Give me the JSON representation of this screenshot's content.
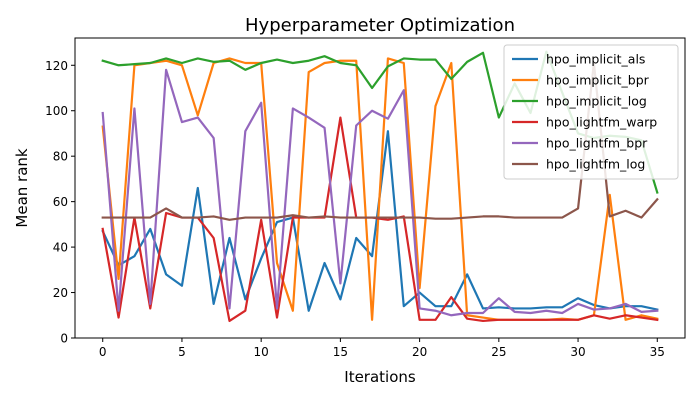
{
  "chart_data": {
    "type": "line",
    "title": "Hyperparameter Optimization",
    "xlabel": "Iterations",
    "ylabel": "Mean rank",
    "xlim": [
      -1.75,
      36.75
    ],
    "ylim": [
      0,
      132
    ],
    "xticks": [
      0,
      5,
      10,
      15,
      20,
      25,
      30,
      35
    ],
    "yticks": [
      0,
      20,
      40,
      60,
      80,
      100,
      120
    ],
    "grid": false,
    "legend_position": "top-right",
    "x": [
      0,
      1,
      2,
      3,
      4,
      5,
      6,
      7,
      8,
      9,
      10,
      11,
      12,
      13,
      14,
      15,
      16,
      17,
      18,
      19,
      20,
      21,
      22,
      23,
      24,
      25,
      26,
      27,
      28,
      29,
      30,
      31,
      32,
      33,
      34,
      35
    ],
    "series": [
      {
        "name": "hpo_implicit_als",
        "color": "#1f77b4",
        "values": [
          47,
          32,
          36,
          48,
          28,
          23,
          66,
          15,
          44,
          17,
          35,
          51,
          53,
          12,
          33,
          17,
          44,
          36,
          91,
          14,
          20,
          14,
          14,
          28,
          13,
          13.5,
          13,
          13,
          13.5,
          13.5,
          17.5,
          14.5,
          13,
          14,
          14,
          12.5
        ]
      },
      {
        "name": "hpo_implicit_bpr",
        "color": "#ff7f0e",
        "values": [
          93,
          26,
          120,
          121,
          122,
          120,
          98,
          121,
          123,
          121,
          121,
          33,
          12,
          117,
          121,
          122,
          122,
          8,
          123,
          121,
          22,
          102,
          121,
          10,
          9,
          8,
          8,
          8,
          8,
          8.5,
          8,
          10,
          63,
          8,
          10,
          8.5
        ]
      },
      {
        "name": "hpo_implicit_log",
        "color": "#2ca02c",
        "values": [
          122,
          120,
          120.5,
          121,
          123,
          121,
          123,
          121.5,
          122,
          118,
          121,
          122.5,
          121,
          122,
          124,
          121,
          120,
          110,
          119.5,
          123,
          122.5,
          122.5,
          114,
          121.5,
          125.5,
          97,
          112,
          99,
          126,
          108,
          90,
          88,
          89,
          88.5,
          87,
          64
        ]
      },
      {
        "name": "hpo_lightfm_warp",
        "color": "#d62728",
        "values": [
          48,
          9,
          53,
          13,
          55,
          53,
          53,
          44,
          7.5,
          12,
          52,
          9,
          53,
          53,
          53,
          97,
          53,
          53,
          52,
          53.5,
          8,
          8,
          18,
          8.5,
          7.5,
          8,
          8,
          8,
          8,
          8,
          8,
          10,
          8.5,
          10,
          9,
          8
        ]
      },
      {
        "name": "hpo_lightfm_bpr",
        "color": "#9467bd",
        "values": [
          99,
          12,
          101,
          15,
          118,
          95,
          97,
          88,
          13,
          91,
          103.5,
          13,
          101,
          97,
          92.5,
          24,
          93.5,
          100,
          96.5,
          109,
          13,
          12,
          10,
          11,
          11,
          17.5,
          11.5,
          11,
          12,
          11,
          15,
          12.5,
          13,
          15,
          11.5,
          12
        ]
      },
      {
        "name": "hpo_lightfm_log",
        "color": "#8c564b",
        "values": [
          53,
          53,
          53,
          53,
          57,
          53,
          53,
          53.5,
          52,
          53,
          53,
          53,
          54,
          53,
          53.5,
          53,
          53,
          53,
          53,
          53,
          53,
          52.5,
          52.5,
          53,
          53.5,
          53.5,
          53,
          53,
          53,
          53,
          57,
          121,
          53.5,
          56,
          53,
          61
        ]
      }
    ]
  }
}
